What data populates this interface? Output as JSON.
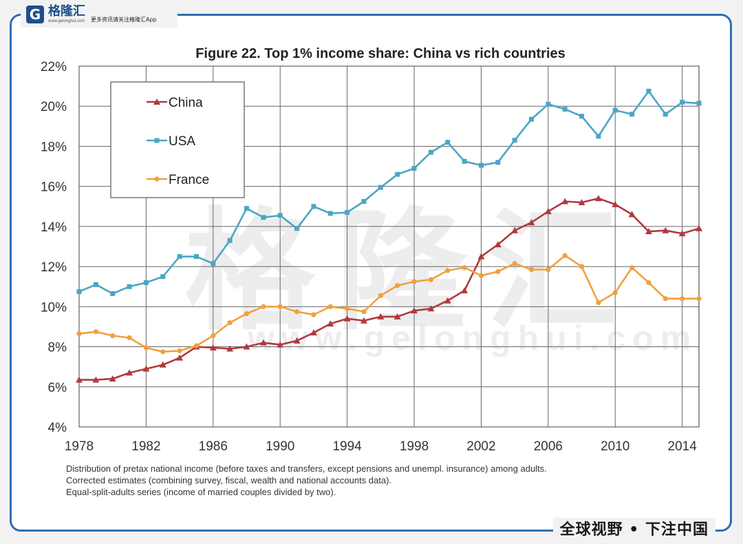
{
  "branding": {
    "logo_mark": "G",
    "logo_name": "格隆汇",
    "logo_url": "www.gelonghui.com",
    "logo_slogan": "更多资讯请关注格隆汇App",
    "footer_tag": "全球视野 • 下注中国",
    "watermark_cn": "格隆汇",
    "watermark_url": "www.gelonghui.com",
    "frame_color": "#2f6db3"
  },
  "notes": [
    "Distribution of pretax national income (before taxes and transfers, except pensions and unempl. insurance) among adults.",
    "Corrected estimates (combining survey, fiscal, wealth and national accounts data).",
    "Equal-split-adults series (income of married couples divided by two)."
  ],
  "chart_data": {
    "type": "line",
    "title": "Figure 22. Top 1% income share: China vs rich countries",
    "xlabel": "",
    "ylabel": "",
    "xlim": [
      1978,
      2015
    ],
    "ylim": [
      4,
      22
    ],
    "x_ticks": [
      1978,
      1982,
      1986,
      1990,
      1994,
      1998,
      2002,
      2006,
      2010,
      2014
    ],
    "x_tick_labels": [
      "1978",
      "1982",
      "1986",
      "1990",
      "1994",
      "1998",
      "2002",
      "2006",
      "2010",
      "2014"
    ],
    "y_ticks": [
      4,
      6,
      8,
      10,
      12,
      14,
      16,
      18,
      20,
      22
    ],
    "y_tick_labels": [
      "4%",
      "6%",
      "8%",
      "10%",
      "12%",
      "14%",
      "16%",
      "18%",
      "20%",
      "22%"
    ],
    "grid": true,
    "legend_position": "top-left",
    "x": [
      1978,
      1979,
      1980,
      1981,
      1982,
      1983,
      1984,
      1985,
      1986,
      1987,
      1988,
      1989,
      1990,
      1991,
      1992,
      1993,
      1994,
      1995,
      1996,
      1997,
      1998,
      1999,
      2000,
      2001,
      2002,
      2003,
      2004,
      2005,
      2006,
      2007,
      2008,
      2009,
      2010,
      2011,
      2012,
      2013,
      2014,
      2015
    ],
    "series": [
      {
        "name": "China",
        "color": "#b03a3e",
        "marker": "triangle",
        "values": [
          6.35,
          6.35,
          6.4,
          6.7,
          6.9,
          7.1,
          7.45,
          8.0,
          7.95,
          7.9,
          8.0,
          8.2,
          8.1,
          8.3,
          8.7,
          9.15,
          9.4,
          9.3,
          9.5,
          9.5,
          9.8,
          9.9,
          10.3,
          10.8,
          12.5,
          13.1,
          13.8,
          14.2,
          14.75,
          15.25,
          15.2,
          15.4,
          15.1,
          14.6,
          13.75,
          13.8,
          13.65,
          13.9
        ]
      },
      {
        "name": "USA",
        "color": "#4aa6c4",
        "marker": "square",
        "values": [
          10.75,
          11.1,
          10.65,
          11.0,
          11.2,
          11.5,
          12.5,
          12.5,
          12.15,
          13.3,
          14.9,
          14.45,
          14.55,
          13.9,
          15.0,
          14.65,
          14.7,
          15.25,
          15.95,
          16.6,
          16.9,
          17.7,
          18.2,
          17.25,
          17.05,
          17.2,
          18.3,
          19.35,
          20.1,
          19.85,
          19.5,
          18.5,
          19.8,
          19.6,
          20.75,
          19.6,
          20.2,
          20.15
        ]
      },
      {
        "name": "France",
        "color": "#f0a040",
        "marker": "circle",
        "values": [
          8.65,
          8.75,
          8.55,
          8.45,
          7.95,
          7.75,
          7.8,
          8.05,
          8.55,
          9.2,
          9.65,
          10.0,
          10.0,
          9.75,
          9.6,
          10.0,
          9.9,
          9.75,
          10.55,
          11.05,
          11.25,
          11.35,
          11.8,
          11.95,
          11.55,
          11.75,
          12.15,
          11.85,
          11.85,
          12.55,
          12.0,
          10.2,
          10.7,
          11.95,
          11.2,
          10.4,
          10.4,
          10.4
        ]
      }
    ]
  }
}
